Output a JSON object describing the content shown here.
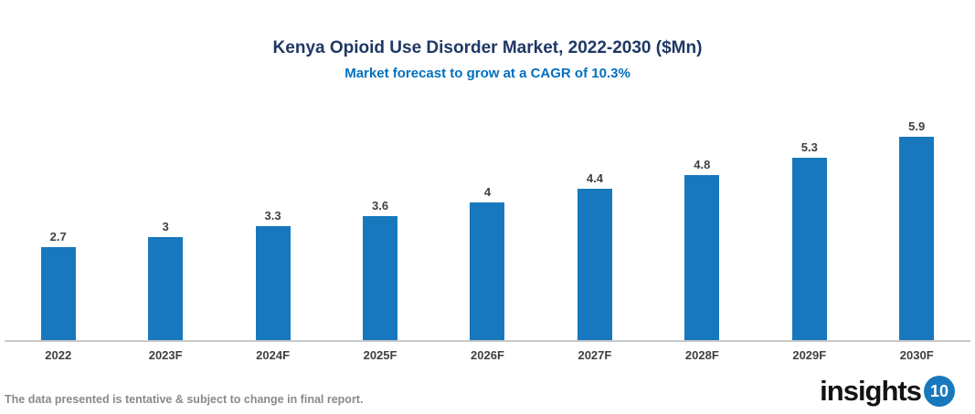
{
  "header": {
    "title": "Kenya Opioid Use Disorder Market, 2022-2030 ($Mn)",
    "subtitle": "Market forecast to grow at a CAGR of 10.3%"
  },
  "chart_data": {
    "type": "bar",
    "title": "Kenya Opioid Use Disorder Market, 2022-2030 ($Mn)",
    "subtitle": "Market forecast to grow at a CAGR of 10.3%",
    "categories": [
      "2022",
      "2023F",
      "2024F",
      "2025F",
      "2026F",
      "2027F",
      "2028F",
      "2029F",
      "2030F"
    ],
    "values": [
      2.7,
      3,
      3.3,
      3.6,
      4,
      4.4,
      4.8,
      5.3,
      5.9
    ],
    "data_labels": [
      "2.7",
      "3",
      "3.3",
      "3.6",
      "4",
      "4.4",
      "4.8",
      "5.3",
      "5.9"
    ],
    "xlabel": "",
    "ylabel": "",
    "ylim": [
      0,
      6.7
    ],
    "grid": false,
    "legend": false,
    "bar_color": "#1878BE"
  },
  "footer": {
    "disclaimer": "The data presented is tentative & subject to change in final report.",
    "logo_text": "insights",
    "logo_badge": "10"
  },
  "colors": {
    "title": "#1F3864",
    "subtitle": "#0070C0",
    "bar": "#1878BE",
    "value_label": "#404040",
    "axis_label": "#404040",
    "axis_line": "#C9C9C9",
    "footer_text": "#8A8A8A",
    "logo_badge_bg": "#1878BE"
  }
}
